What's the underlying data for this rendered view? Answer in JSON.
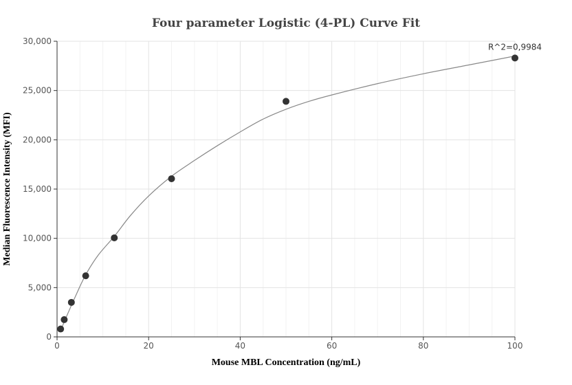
{
  "chart_data": {
    "type": "scatter",
    "title": "Four parameter Logistic (4-PL) Curve Fit",
    "xlabel": "Mouse MBL Concentration (ng/mL)",
    "ylabel": "Median Fluorescence Intensity (MFI)",
    "xlim": [
      0,
      100
    ],
    "ylim": [
      0,
      30000
    ],
    "x_ticks": [
      0,
      20,
      40,
      60,
      80,
      100
    ],
    "x_tick_labels": [
      "0",
      "20",
      "40",
      "60",
      "80",
      "100"
    ],
    "y_ticks": [
      0,
      5000,
      10000,
      15000,
      20000,
      25000,
      30000
    ],
    "y_tick_labels": [
      "0",
      "5,000",
      "10,000",
      "15,000",
      "20,000",
      "25,000",
      "30,000"
    ],
    "grid": true,
    "points": [
      {
        "x": 0.78,
        "y": 800
      },
      {
        "x": 1.56,
        "y": 1750
      },
      {
        "x": 3.125,
        "y": 3500
      },
      {
        "x": 6.25,
        "y": 6200
      },
      {
        "x": 12.5,
        "y": 10050
      },
      {
        "x": 25,
        "y": 16050
      },
      {
        "x": 50,
        "y": 23900
      },
      {
        "x": 100,
        "y": 28300
      }
    ],
    "fit_curve": [
      {
        "x": 0.78,
        "y": 650
      },
      {
        "x": 2,
        "y": 2000
      },
      {
        "x": 4,
        "y": 4100
      },
      {
        "x": 6.25,
        "y": 6300
      },
      {
        "x": 9,
        "y": 8300
      },
      {
        "x": 12.5,
        "y": 10200
      },
      {
        "x": 16,
        "y": 12300
      },
      {
        "x": 20,
        "y": 14300
      },
      {
        "x": 25,
        "y": 16300
      },
      {
        "x": 30,
        "y": 17900
      },
      {
        "x": 35,
        "y": 19400
      },
      {
        "x": 40,
        "y": 20800
      },
      {
        "x": 45,
        "y": 22100
      },
      {
        "x": 50,
        "y": 23100
      },
      {
        "x": 55,
        "y": 23900
      },
      {
        "x": 60,
        "y": 24550
      },
      {
        "x": 70,
        "y": 25700
      },
      {
        "x": 80,
        "y": 26700
      },
      {
        "x": 90,
        "y": 27600
      },
      {
        "x": 100,
        "y": 28500
      }
    ],
    "annotation": "R^2=0,9984",
    "colors": {
      "points": "#333333",
      "curve": "#888888",
      "grid": "#e3e3e3"
    }
  }
}
